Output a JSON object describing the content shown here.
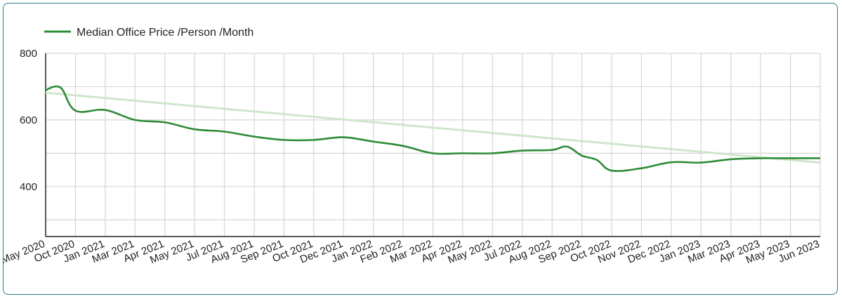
{
  "chart_data": {
    "type": "line",
    "title": "",
    "xlabel": "",
    "ylabel": "",
    "legend": {
      "position": "top-left"
    },
    "grid": true,
    "ylim": [
      250,
      800
    ],
    "yticks": [
      400,
      600,
      800
    ],
    "categories": [
      "May 2020",
      "Oct 2020",
      "Jan 2021",
      "Mar 2021",
      "Apr 2021",
      "May 2021",
      "Jul 2021",
      "Aug 2021",
      "Sep 2021",
      "Oct 2021",
      "Dec 2021",
      "Jan 2022",
      "Feb 2022",
      "Mar 2022",
      "Apr 2022",
      "May 2022",
      "Jul 2022",
      "Aug 2022",
      "Sep 2022",
      "Oct 2022",
      "Nov 2022",
      "Dec 2022",
      "Jan 2023",
      "Mar 2023",
      "Apr 2023",
      "May 2023",
      "Jun 2023"
    ],
    "series": [
      {
        "name": "Median Office Price /Person /Month",
        "color": "#2e8b35",
        "values": [
          690,
          628,
          630,
          600,
          593,
          572,
          565,
          550,
          540,
          540,
          548,
          535,
          522,
          500,
          500,
          500,
          508,
          510,
          493,
          448,
          455,
          473,
          472,
          482,
          485,
          485,
          485
        ],
        "extra_points": [
          {
            "between": [
              0,
              1
            ],
            "value": 697
          },
          {
            "between": [
              17,
              18
            ],
            "value": 520
          },
          {
            "between": [
              18,
              19
            ],
            "value": 480
          }
        ]
      }
    ],
    "trendline": {
      "color": "#cfe6cc",
      "start": 682,
      "end": 472
    }
  }
}
